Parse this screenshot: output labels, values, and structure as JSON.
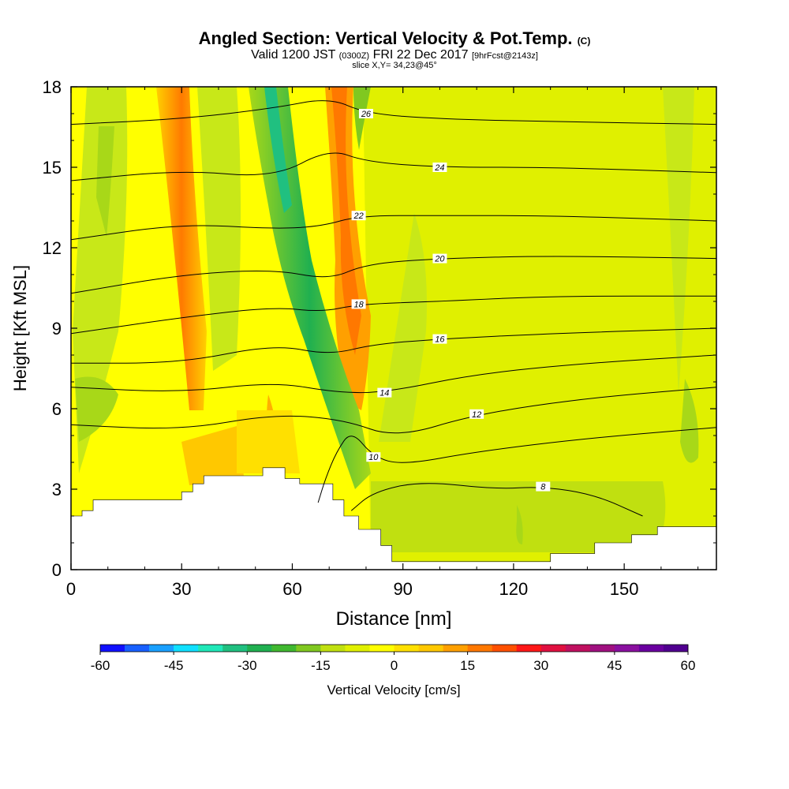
{
  "chart_data": {
    "type": "heatmap",
    "title": "Angled Section: Vertical Velocity & Pot.Temp.",
    "title_unit": "(C)",
    "subtitle": {
      "valid": "Valid 1200 JST",
      "utc": "(0300Z)",
      "date": "FRI 22 Dec 2017",
      "forecast": "[9hrFcst@2143z]"
    },
    "slice": "slice X,Y= 34,23@45°",
    "xlabel": "Distance [nm]",
    "ylabel": "Height [Kft MSL]",
    "xlim": [
      0,
      175
    ],
    "ylim": [
      0,
      18
    ],
    "x_ticks": [
      0,
      30,
      60,
      90,
      120,
      150
    ],
    "y_ticks": [
      0,
      3,
      6,
      9,
      12,
      15,
      18
    ],
    "colorbar": {
      "label": "Vertical Velocity [cm/s]",
      "ticks": [
        -60,
        -45,
        -30,
        -15,
        0,
        15,
        30,
        45,
        60
      ],
      "colors": [
        "#1010ff",
        "#1860ff",
        "#1aa0ff",
        "#10e0ff",
        "#20e8b8",
        "#20c080",
        "#20b050",
        "#40b830",
        "#80c820",
        "#c0e010",
        "#e0f000",
        "#ffff00",
        "#ffe000",
        "#ffc800",
        "#ffa000",
        "#ff7800",
        "#ff5000",
        "#ff1818",
        "#e01040",
        "#c01060",
        "#a01080",
        "#8a10a0",
        "#6a00a0",
        "#500090"
      ]
    },
    "theta_contours": [
      {
        "label": "26",
        "points": [
          [
            0,
            16.6
          ],
          [
            30,
            16.8
          ],
          [
            55,
            17.2
          ],
          [
            70,
            17.6
          ],
          [
            80,
            17.0
          ],
          [
            100,
            16.8
          ],
          [
            130,
            16.7
          ],
          [
            175,
            16.6
          ]
        ]
      },
      {
        "label": "24",
        "points": [
          [
            0,
            14.5
          ],
          [
            30,
            14.9
          ],
          [
            55,
            14.6
          ],
          [
            70,
            15.7
          ],
          [
            80,
            15.2
          ],
          [
            100,
            15.0
          ],
          [
            130,
            15.0
          ],
          [
            175,
            14.8
          ]
        ]
      },
      {
        "label": "22",
        "points": [
          [
            0,
            12.3
          ],
          [
            30,
            12.9
          ],
          [
            55,
            12.7
          ],
          [
            68,
            12.8
          ],
          [
            78,
            13.2
          ],
          [
            100,
            13.2
          ],
          [
            130,
            13.2
          ],
          [
            175,
            13.0
          ]
        ]
      },
      {
        "label": "20",
        "points": [
          [
            0,
            10.3
          ],
          [
            30,
            11.0
          ],
          [
            55,
            11.2
          ],
          [
            70,
            10.8
          ],
          [
            80,
            11.4
          ],
          [
            100,
            11.6
          ],
          [
            130,
            11.7
          ],
          [
            175,
            11.6
          ]
        ]
      },
      {
        "label": "18",
        "points": [
          [
            0,
            8.8
          ],
          [
            30,
            9.4
          ],
          [
            55,
            9.8
          ],
          [
            68,
            9.6
          ],
          [
            78,
            9.9
          ],
          [
            100,
            10.0
          ],
          [
            130,
            10.2
          ],
          [
            175,
            10.2
          ]
        ]
      },
      {
        "label": "16",
        "points": [
          [
            0,
            7.7
          ],
          [
            30,
            7.7
          ],
          [
            55,
            8.4
          ],
          [
            70,
            8.0
          ],
          [
            82,
            8.4
          ],
          [
            100,
            8.6
          ],
          [
            130,
            8.8
          ],
          [
            175,
            9.0
          ]
        ]
      },
      {
        "label": "14",
        "points": [
          [
            0,
            6.8
          ],
          [
            30,
            6.6
          ],
          [
            55,
            7.0
          ],
          [
            72,
            6.6
          ],
          [
            85,
            6.6
          ],
          [
            110,
            7.3
          ],
          [
            140,
            7.7
          ],
          [
            175,
            8.0
          ]
        ]
      },
      {
        "label": "12",
        "points": [
          [
            0,
            5.4
          ],
          [
            30,
            5.2
          ],
          [
            55,
            5.8
          ],
          [
            74,
            5.6
          ],
          [
            88,
            4.9
          ],
          [
            110,
            5.8
          ],
          [
            140,
            6.4
          ],
          [
            175,
            6.8
          ]
        ]
      },
      {
        "label": "10",
        "points": [
          [
            67,
            2.5
          ],
          [
            69,
            3.4
          ],
          [
            72,
            4.4
          ],
          [
            76,
            5.2
          ],
          [
            82,
            4.2
          ],
          [
            90,
            3.9
          ],
          [
            110,
            4.4
          ],
          [
            140,
            4.9
          ],
          [
            175,
            5.3
          ]
        ]
      },
      {
        "label": "8",
        "points": [
          [
            76,
            2.2
          ],
          [
            82,
            2.9
          ],
          [
            95,
            3.3
          ],
          [
            115,
            3.0
          ],
          [
            128,
            3.1
          ],
          [
            142,
            2.8
          ],
          [
            155,
            2.0
          ]
        ]
      }
    ],
    "terrain_kft": [
      [
        0,
        2.0
      ],
      [
        3,
        2.0
      ],
      [
        3,
        2.2
      ],
      [
        6,
        2.2
      ],
      [
        6,
        2.6
      ],
      [
        30,
        2.6
      ],
      [
        30,
        2.9
      ],
      [
        33,
        2.9
      ],
      [
        33,
        3.2
      ],
      [
        36,
        3.2
      ],
      [
        36,
        3.5
      ],
      [
        52,
        3.5
      ],
      [
        52,
        3.8
      ],
      [
        58,
        3.8
      ],
      [
        58,
        3.4
      ],
      [
        62,
        3.4
      ],
      [
        62,
        3.2
      ],
      [
        71,
        3.2
      ],
      [
        71,
        2.6
      ],
      [
        74,
        2.6
      ],
      [
        74,
        2.0
      ],
      [
        78,
        2.0
      ],
      [
        78,
        1.5
      ],
      [
        84,
        1.5
      ],
      [
        84,
        0.9
      ],
      [
        87,
        0.9
      ],
      [
        87,
        0.3
      ],
      [
        130,
        0.3
      ],
      [
        130,
        0.6
      ],
      [
        142,
        0.6
      ],
      [
        142,
        1.0
      ],
      [
        152,
        1.0
      ],
      [
        152,
        1.3
      ],
      [
        159,
        1.3
      ],
      [
        159,
        1.6
      ],
      [
        165,
        1.6
      ],
      [
        175,
        1.6
      ]
    ]
  }
}
